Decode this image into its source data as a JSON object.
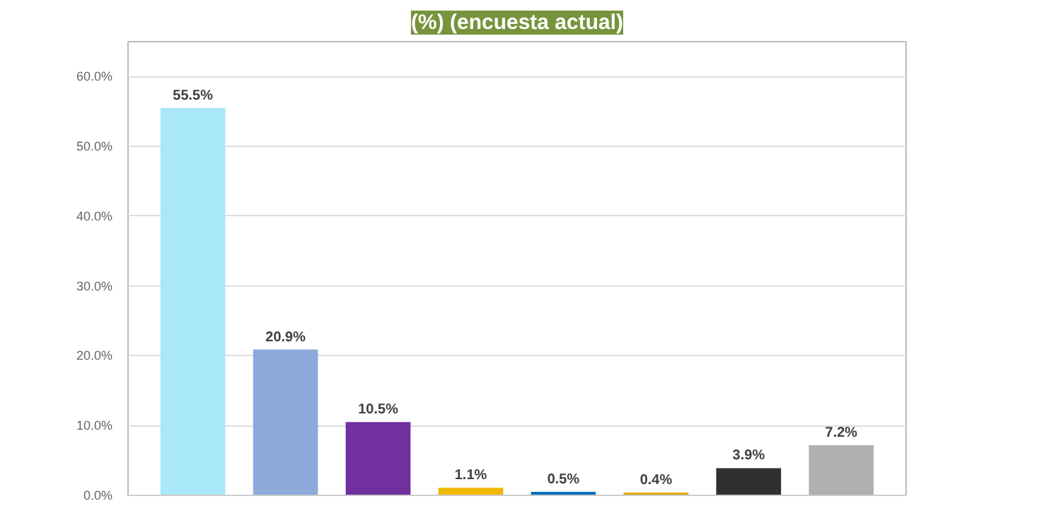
{
  "chart_data": {
    "type": "bar",
    "title": "(%) (encuesta actual)",
    "categories": [
      null,
      null,
      null,
      null,
      null,
      null,
      null,
      null
    ],
    "values": [
      55.5,
      20.9,
      10.5,
      1.1,
      0.5,
      0.4,
      3.9,
      7.2
    ],
    "colors": [
      "#a8e8f8",
      "#8eaadb",
      "#7030a0",
      "#f0b800",
      "#0070c0",
      "#e0a800",
      "#303030",
      "#b0b0b0"
    ],
    "value_labels": [
      "55.5%",
      "20.9%",
      "10.5%",
      "1.1%",
      "0.5%",
      "0.4%",
      "3.9%",
      "7.2%"
    ],
    "ylim": [
      0,
      65
    ],
    "yticks": [
      {
        "value": 0,
        "label": "0.0%"
      },
      {
        "value": 10,
        "label": "10.0%"
      },
      {
        "value": 20,
        "label": "20.0%"
      },
      {
        "value": 30,
        "label": "30.0%"
      },
      {
        "value": 40,
        "label": "40.0%"
      },
      {
        "value": 50,
        "label": "50.0%"
      },
      {
        "value": 60,
        "label": "60.0%"
      }
    ],
    "grid": "y"
  }
}
